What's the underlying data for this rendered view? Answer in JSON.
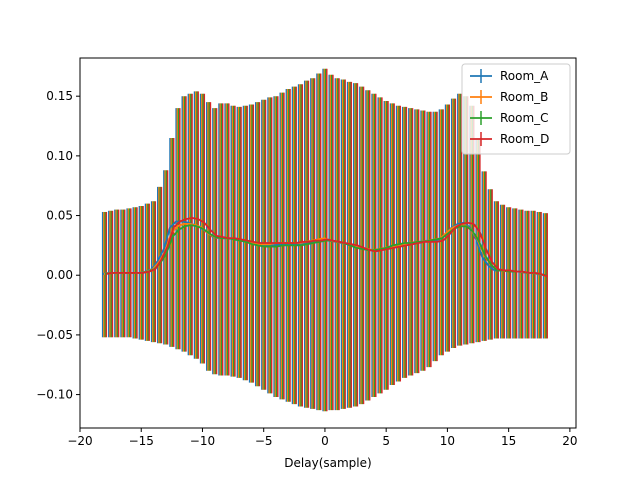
{
  "chart_data": {
    "type": "line",
    "title": "",
    "xlabel": "Delay(sample)",
    "ylabel": "",
    "xlim": [
      -20,
      20.5
    ],
    "ylim": [
      -0.128,
      0.182
    ],
    "xticks": [
      -20,
      -15,
      -10,
      -5,
      0,
      5,
      10,
      15,
      20
    ],
    "xtick_labels": [
      "−20",
      "−15",
      "−10",
      "−5",
      "0",
      "5",
      "10",
      "15",
      "20"
    ],
    "yticks": [
      -0.1,
      -0.05,
      0.0,
      0.05,
      0.1,
      0.15
    ],
    "ytick_labels": [
      "−0.10",
      "−0.05",
      "0.00",
      "0.05",
      "0.10",
      "0.15"
    ],
    "grid": false,
    "legend_position": "top-right",
    "x": [
      -18,
      -17.5,
      -17,
      -16.5,
      -16,
      -15.5,
      -15,
      -14.5,
      -14,
      -13.5,
      -13,
      -12.5,
      -12,
      -11.5,
      -11,
      -10.5,
      -10,
      -9.5,
      -9,
      -8.5,
      -8,
      -7.5,
      -7,
      -6.5,
      -6,
      -5.5,
      -5,
      -4.5,
      -4,
      -3.5,
      -3,
      -2.5,
      -2,
      -1.5,
      -1,
      -0.5,
      0,
      0.5,
      1,
      1.5,
      2,
      2.5,
      3,
      3.5,
      4,
      4.5,
      5,
      5.5,
      6,
      6.5,
      7,
      7.5,
      8,
      8.5,
      9,
      9.5,
      10,
      10.5,
      11,
      11.5,
      12,
      12.5,
      13,
      13.5,
      14,
      14.5,
      15,
      15.5,
      16,
      16.5,
      17,
      17.5,
      18
    ],
    "error_upper": [
      0.053,
      0.054,
      0.055,
      0.055,
      0.056,
      0.057,
      0.058,
      0.06,
      0.062,
      0.074,
      0.088,
      0.115,
      0.14,
      0.15,
      0.152,
      0.154,
      0.152,
      0.145,
      0.14,
      0.144,
      0.144,
      0.142,
      0.141,
      0.142,
      0.143,
      0.145,
      0.147,
      0.149,
      0.15,
      0.153,
      0.156,
      0.158,
      0.16,
      0.163,
      0.165,
      0.169,
      0.173,
      0.168,
      0.165,
      0.164,
      0.162,
      0.161,
      0.158,
      0.155,
      0.152,
      0.149,
      0.146,
      0.144,
      0.142,
      0.141,
      0.14,
      0.139,
      0.138,
      0.137,
      0.137,
      0.139,
      0.143,
      0.148,
      0.152,
      0.15,
      0.142,
      0.115,
      0.087,
      0.072,
      0.062,
      0.059,
      0.057,
      0.056,
      0.055,
      0.054,
      0.054,
      0.053,
      0.052
    ],
    "error_lower": [
      -0.052,
      -0.052,
      -0.052,
      -0.052,
      -0.052,
      -0.053,
      -0.054,
      -0.055,
      -0.056,
      -0.057,
      -0.058,
      -0.06,
      -0.062,
      -0.064,
      -0.067,
      -0.07,
      -0.074,
      -0.08,
      -0.083,
      -0.084,
      -0.084,
      -0.085,
      -0.086,
      -0.088,
      -0.09,
      -0.093,
      -0.096,
      -0.099,
      -0.102,
      -0.104,
      -0.106,
      -0.108,
      -0.11,
      -0.111,
      -0.112,
      -0.113,
      -0.114,
      -0.113,
      -0.113,
      -0.112,
      -0.111,
      -0.11,
      -0.108,
      -0.105,
      -0.102,
      -0.099,
      -0.096,
      -0.092,
      -0.089,
      -0.086,
      -0.084,
      -0.082,
      -0.08,
      -0.077,
      -0.072,
      -0.067,
      -0.064,
      -0.061,
      -0.059,
      -0.058,
      -0.057,
      -0.056,
      -0.055,
      -0.054,
      -0.053,
      -0.053,
      -0.053,
      -0.053,
      -0.053,
      -0.053,
      -0.053,
      -0.053,
      -0.053
    ],
    "series": [
      {
        "name": "Room_A",
        "color": "#1f77b4",
        "offset": -0.15,
        "values": [
          0.001,
          0.002,
          0.002,
          0.002,
          0.002,
          0.002,
          0.002,
          0.003,
          0.005,
          0.012,
          0.022,
          0.04,
          0.045,
          0.045,
          0.044,
          0.042,
          0.04,
          0.036,
          0.032,
          0.031,
          0.031,
          0.031,
          0.03,
          0.029,
          0.027,
          0.026,
          0.025,
          0.025,
          0.025,
          0.026,
          0.026,
          0.026,
          0.026,
          0.027,
          0.028,
          0.029,
          0.03,
          0.029,
          0.028,
          0.027,
          0.026,
          0.025,
          0.023,
          0.022,
          0.021,
          0.021,
          0.022,
          0.023,
          0.024,
          0.025,
          0.026,
          0.027,
          0.028,
          0.029,
          0.029,
          0.03,
          0.035,
          0.04,
          0.043,
          0.044,
          0.04,
          0.03,
          0.015,
          0.008,
          0.004,
          0.004,
          0.004,
          0.003,
          0.003,
          0.002,
          0.002,
          0.001,
          0.0
        ]
      },
      {
        "name": "Room_B",
        "color": "#ff7f0e",
        "offset": -0.05,
        "values": [
          0.001,
          0.002,
          0.002,
          0.002,
          0.002,
          0.002,
          0.002,
          0.003,
          0.005,
          0.011,
          0.02,
          0.035,
          0.041,
          0.043,
          0.043,
          0.042,
          0.04,
          0.035,
          0.032,
          0.031,
          0.031,
          0.031,
          0.03,
          0.029,
          0.027,
          0.026,
          0.026,
          0.026,
          0.027,
          0.027,
          0.027,
          0.027,
          0.027,
          0.028,
          0.029,
          0.03,
          0.031,
          0.029,
          0.028,
          0.027,
          0.026,
          0.025,
          0.023,
          0.022,
          0.021,
          0.022,
          0.023,
          0.024,
          0.025,
          0.026,
          0.027,
          0.028,
          0.028,
          0.029,
          0.03,
          0.031,
          0.036,
          0.04,
          0.042,
          0.042,
          0.038,
          0.03,
          0.018,
          0.01,
          0.005,
          0.004,
          0.003,
          0.003,
          0.003,
          0.002,
          0.002,
          0.001,
          0.0
        ]
      },
      {
        "name": "Room_C",
        "color": "#2ca02c",
        "offset": 0.05,
        "values": [
          0.001,
          0.002,
          0.002,
          0.002,
          0.002,
          0.002,
          0.002,
          0.003,
          0.005,
          0.01,
          0.018,
          0.032,
          0.038,
          0.041,
          0.042,
          0.041,
          0.039,
          0.035,
          0.032,
          0.031,
          0.031,
          0.03,
          0.029,
          0.028,
          0.026,
          0.025,
          0.024,
          0.024,
          0.024,
          0.025,
          0.025,
          0.025,
          0.025,
          0.026,
          0.027,
          0.028,
          0.029,
          0.029,
          0.028,
          0.027,
          0.025,
          0.023,
          0.022,
          0.021,
          0.021,
          0.022,
          0.023,
          0.025,
          0.026,
          0.027,
          0.027,
          0.028,
          0.028,
          0.029,
          0.03,
          0.031,
          0.035,
          0.039,
          0.041,
          0.041,
          0.037,
          0.029,
          0.017,
          0.009,
          0.004,
          0.004,
          0.003,
          0.003,
          0.003,
          0.002,
          0.002,
          0.001,
          0.0
        ]
      },
      {
        "name": "Room_D",
        "color": "#d62728",
        "offset": 0.15,
        "values": [
          0.001,
          0.002,
          0.002,
          0.002,
          0.002,
          0.002,
          0.002,
          0.003,
          0.005,
          0.013,
          0.024,
          0.04,
          0.045,
          0.047,
          0.048,
          0.047,
          0.044,
          0.038,
          0.033,
          0.032,
          0.031,
          0.031,
          0.03,
          0.029,
          0.028,
          0.027,
          0.027,
          0.027,
          0.027,
          0.027,
          0.027,
          0.027,
          0.028,
          0.028,
          0.029,
          0.029,
          0.03,
          0.029,
          0.028,
          0.027,
          0.026,
          0.025,
          0.023,
          0.021,
          0.02,
          0.021,
          0.022,
          0.023,
          0.024,
          0.025,
          0.026,
          0.027,
          0.028,
          0.028,
          0.028,
          0.029,
          0.034,
          0.04,
          0.043,
          0.044,
          0.043,
          0.036,
          0.022,
          0.011,
          0.005,
          0.004,
          0.004,
          0.003,
          0.003,
          0.002,
          0.002,
          0.001,
          -0.001
        ]
      }
    ]
  }
}
